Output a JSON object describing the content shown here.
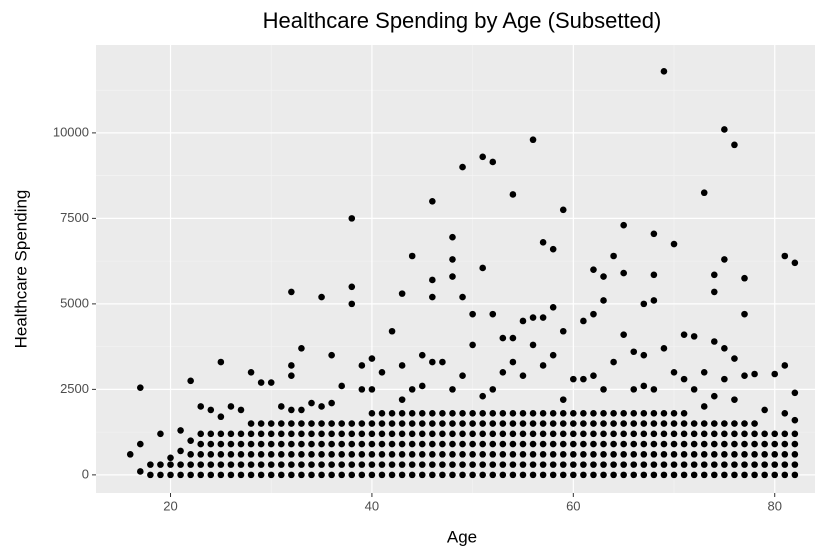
{
  "chart_data": {
    "type": "scatter",
    "title": "Healthcare Spending by Age (Subsetted)",
    "x_label": "Age",
    "y_label": "Healthcare Spending",
    "color": "#000000",
    "grid": true,
    "xlim": [
      12.6,
      84
    ],
    "xticks": [
      20,
      40,
      60,
      80
    ],
    "x_minor_ticks": [
      30,
      50,
      70
    ],
    "ylim": [
      -530,
      12570
    ],
    "yticks": [
      0,
      2500,
      5000,
      7500,
      10000
    ],
    "y_minor_ticks": [
      1250,
      3750,
      6250,
      8750,
      11250
    ],
    "x": [
      16,
      17,
      17,
      17,
      18,
      18,
      19,
      19,
      19,
      20,
      20,
      20,
      21,
      21,
      21,
      21,
      22,
      22,
      22,
      22,
      22,
      23,
      23,
      23,
      23,
      23,
      23,
      24,
      24,
      24,
      24,
      24,
      24,
      25,
      25,
      25,
      25,
      25,
      25,
      25,
      26,
      26,
      26,
      26,
      26,
      26,
      27,
      27,
      27,
      27,
      27,
      27,
      28,
      28,
      28,
      28,
      28,
      28,
      28,
      29,
      29,
      29,
      29,
      29,
      29,
      29,
      30,
      30,
      30,
      30,
      30,
      30,
      30,
      31,
      31,
      31,
      31,
      31,
      31,
      31,
      32,
      32,
      32,
      32,
      32,
      32,
      32,
      32,
      32,
      32,
      33,
      33,
      33,
      33,
      33,
      33,
      33,
      33,
      34,
      34,
      34,
      34,
      34,
      34,
      34,
      35,
      35,
      35,
      35,
      35,
      35,
      35,
      35,
      36,
      36,
      36,
      36,
      36,
      36,
      36,
      36,
      37,
      37,
      37,
      37,
      37,
      37,
      37,
      38,
      38,
      38,
      38,
      38,
      38,
      38,
      38,
      38,
      39,
      39,
      39,
      39,
      39,
      39,
      39,
      39,
      40,
      40,
      40,
      40,
      40,
      40,
      40,
      40,
      40,
      41,
      41,
      41,
      41,
      41,
      41,
      41,
      41,
      42,
      42,
      42,
      42,
      42,
      42,
      42,
      42,
      43,
      43,
      43,
      43,
      43,
      43,
      43,
      43,
      43,
      43,
      44,
      44,
      44,
      44,
      44,
      44,
      44,
      44,
      44,
      45,
      45,
      45,
      45,
      45,
      45,
      45,
      45,
      45,
      46,
      46,
      46,
      46,
      46,
      46,
      46,
      46,
      46,
      46,
      46,
      47,
      47,
      47,
      47,
      47,
      47,
      47,
      47,
      48,
      48,
      48,
      48,
      48,
      48,
      48,
      48,
      48,
      48,
      48,
      49,
      49,
      49,
      49,
      49,
      49,
      49,
      49,
      49,
      49,
      50,
      50,
      50,
      50,
      50,
      50,
      50,
      50,
      50,
      51,
      51,
      51,
      51,
      51,
      51,
      51,
      51,
      51,
      51,
      52,
      52,
      52,
      52,
      52,
      52,
      52,
      52,
      52,
      52,
      53,
      53,
      53,
      53,
      53,
      53,
      53,
      53,
      53,
      54,
      54,
      54,
      54,
      54,
      54,
      54,
      54,
      54,
      54,
      55,
      55,
      55,
      55,
      55,
      55,
      55,
      55,
      55,
      56,
      56,
      56,
      56,
      56,
      56,
      56,
      56,
      56,
      56,
      57,
      57,
      57,
      57,
      57,
      57,
      57,
      57,
      57,
      57,
      58,
      58,
      58,
      58,
      58,
      58,
      58,
      58,
      58,
      58,
      59,
      59,
      59,
      59,
      59,
      59,
      59,
      59,
      59,
      59,
      60,
      60,
      60,
      60,
      60,
      60,
      60,
      60,
      61,
      61,
      61,
      61,
      61,
      61,
      61,
      61,
      61,
      62,
      62,
      62,
      62,
      62,
      62,
      62,
      62,
      62,
      62,
      63,
      63,
      63,
      63,
      63,
      63,
      63,
      63,
      63,
      63,
      64,
      64,
      64,
      64,
      64,
      64,
      64,
      64,
      64,
      65,
      65,
      65,
      65,
      65,
      65,
      65,
      65,
      65,
      65,
      66,
      66,
      66,
      66,
      66,
      66,
      66,
      66,
      66,
      67,
      67,
      67,
      67,
      67,
      67,
      67,
      67,
      67,
      67,
      68,
      68,
      68,
      68,
      68,
      68,
      68,
      68,
      68,
      68,
      68,
      69,
      69,
      69,
      69,
      69,
      69,
      69,
      69,
      69,
      70,
      70,
      70,
      70,
      70,
      70,
      70,
      70,
      70,
      71,
      71,
      71,
      71,
      71,
      71,
      71,
      71,
      71,
      72,
      72,
      72,
      72,
      72,
      72,
      72,
      72,
      73,
      73,
      73,
      73,
      73,
      73,
      73,
      73,
      73,
      74,
      74,
      74,
      74,
      74,
      74,
      74,
      74,
      74,
      74,
      75,
      75,
      75,
      75,
      75,
      75,
      75,
      75,
      75,
      75,
      76,
      76,
      76,
      76,
      76,
      76,
      76,
      76,
      76,
      77,
      77,
      77,
      77,
      77,
      77,
      77,
      77,
      77,
      78,
      78,
      78,
      78,
      78,
      78,
      78,
      79,
      79,
      79,
      79,
      79,
      79,
      80,
      80,
      80,
      80,
      80,
      80,
      81,
      81,
      81,
      81,
      81,
      81,
      81,
      81,
      82,
      82,
      82,
      82,
      82,
      82,
      82,
      82
    ],
    "values": [
      600,
      100,
      900,
      2550,
      0,
      300,
      0,
      300,
      1200,
      0,
      300,
      500,
      0,
      300,
      700,
      1300,
      0,
      300,
      600,
      1000,
      2750,
      0,
      300,
      600,
      900,
      1200,
      2000,
      0,
      300,
      600,
      900,
      1200,
      1900,
      0,
      300,
      600,
      900,
      1200,
      1700,
      3300,
      0,
      300,
      600,
      900,
      1200,
      2000,
      0,
      300,
      600,
      900,
      1200,
      1900,
      0,
      300,
      600,
      900,
      1200,
      1500,
      3000,
      0,
      300,
      600,
      900,
      1200,
      1500,
      2700,
      0,
      300,
      600,
      900,
      1200,
      1500,
      2700,
      0,
      300,
      600,
      900,
      1200,
      1500,
      2000,
      0,
      300,
      600,
      900,
      1200,
      1500,
      1900,
      2900,
      3200,
      5350,
      0,
      300,
      600,
      900,
      1200,
      1500,
      1900,
      3700,
      0,
      300,
      600,
      900,
      1200,
      1500,
      2100,
      0,
      300,
      600,
      900,
      1200,
      1500,
      2000,
      5200,
      0,
      300,
      600,
      900,
      1200,
      1500,
      2100,
      3500,
      0,
      300,
      600,
      900,
      1200,
      1500,
      2600,
      0,
      300,
      600,
      900,
      1200,
      1500,
      5000,
      5500,
      7500,
      0,
      300,
      600,
      900,
      1200,
      1500,
      2500,
      3200,
      0,
      300,
      600,
      900,
      1200,
      1500,
      1800,
      2500,
      3400,
      0,
      300,
      600,
      900,
      1200,
      1500,
      1800,
      3000,
      0,
      300,
      600,
      900,
      1200,
      1500,
      1800,
      4200,
      0,
      300,
      600,
      900,
      1200,
      1500,
      1800,
      2200,
      3200,
      5300,
      0,
      300,
      600,
      900,
      1200,
      1500,
      1800,
      2500,
      6400,
      0,
      300,
      600,
      900,
      1200,
      1500,
      1800,
      2600,
      3500,
      0,
      300,
      600,
      900,
      1200,
      1500,
      1800,
      3300,
      5200,
      5700,
      8000,
      0,
      300,
      600,
      900,
      1200,
      1500,
      1800,
      3300,
      0,
      300,
      600,
      900,
      1200,
      1500,
      1800,
      2500,
      5800,
      6300,
      6950,
      0,
      300,
      600,
      900,
      1200,
      1500,
      1800,
      2900,
      5200,
      9000,
      0,
      300,
      600,
      900,
      1200,
      1500,
      1800,
      3800,
      4700,
      0,
      300,
      600,
      900,
      1200,
      1500,
      1800,
      2300,
      6050,
      9300,
      0,
      300,
      600,
      900,
      1200,
      1500,
      1800,
      2500,
      4700,
      9150,
      0,
      300,
      600,
      900,
      1200,
      1500,
      1800,
      3000,
      4000,
      0,
      300,
      600,
      900,
      1200,
      1500,
      1800,
      3300,
      4000,
      8200,
      0,
      300,
      600,
      900,
      1200,
      1500,
      1800,
      2900,
      4500,
      0,
      300,
      600,
      900,
      1200,
      1500,
      1800,
      3800,
      4600,
      9800,
      0,
      300,
      600,
      900,
      1200,
      1500,
      1800,
      3200,
      4600,
      6800,
      0,
      300,
      600,
      900,
      1200,
      1500,
      1800,
      3500,
      4900,
      6600,
      0,
      300,
      600,
      900,
      1200,
      1500,
      1800,
      2200,
      4200,
      7750,
      0,
      300,
      600,
      900,
      1200,
      1500,
      1800,
      2800,
      0,
      300,
      600,
      900,
      1200,
      1500,
      1800,
      2800,
      4500,
      0,
      300,
      600,
      900,
      1200,
      1500,
      1800,
      2900,
      4700,
      6000,
      0,
      300,
      600,
      900,
      1200,
      1500,
      1800,
      2500,
      5100,
      5800,
      0,
      300,
      600,
      900,
      1200,
      1500,
      1800,
      3300,
      6400,
      0,
      300,
      600,
      900,
      1200,
      1500,
      1800,
      4100,
      5900,
      7300,
      0,
      300,
      600,
      900,
      1200,
      1500,
      1800,
      2500,
      3600,
      0,
      300,
      600,
      900,
      1200,
      1500,
      1800,
      2600,
      3500,
      5000,
      0,
      300,
      600,
      900,
      1200,
      1500,
      1800,
      2500,
      5100,
      5850,
      7050,
      0,
      300,
      600,
      900,
      1200,
      1500,
      1800,
      3700,
      11800,
      0,
      300,
      600,
      900,
      1200,
      1500,
      1800,
      3000,
      6750,
      0,
      300,
      600,
      900,
      1200,
      1500,
      1800,
      2800,
      4100,
      0,
      300,
      600,
      900,
      1200,
      1500,
      2500,
      4050,
      0,
      300,
      600,
      900,
      1200,
      1500,
      2000,
      3000,
      8250,
      0,
      300,
      600,
      900,
      1200,
      1500,
      2300,
      3900,
      5350,
      5850,
      0,
      300,
      600,
      900,
      1200,
      1500,
      2800,
      3700,
      6300,
      10100,
      0,
      300,
      600,
      900,
      1200,
      1500,
      2200,
      3400,
      9650,
      0,
      300,
      600,
      900,
      1200,
      1500,
      2900,
      4700,
      5750,
      0,
      300,
      600,
      900,
      1200,
      1500,
      2950,
      0,
      300,
      600,
      900,
      1200,
      1900,
      0,
      300,
      600,
      900,
      1200,
      2950,
      0,
      300,
      600,
      900,
      1200,
      1800,
      3200,
      6400,
      0,
      300,
      600,
      900,
      1200,
      1600,
      2400,
      6200
    ]
  }
}
